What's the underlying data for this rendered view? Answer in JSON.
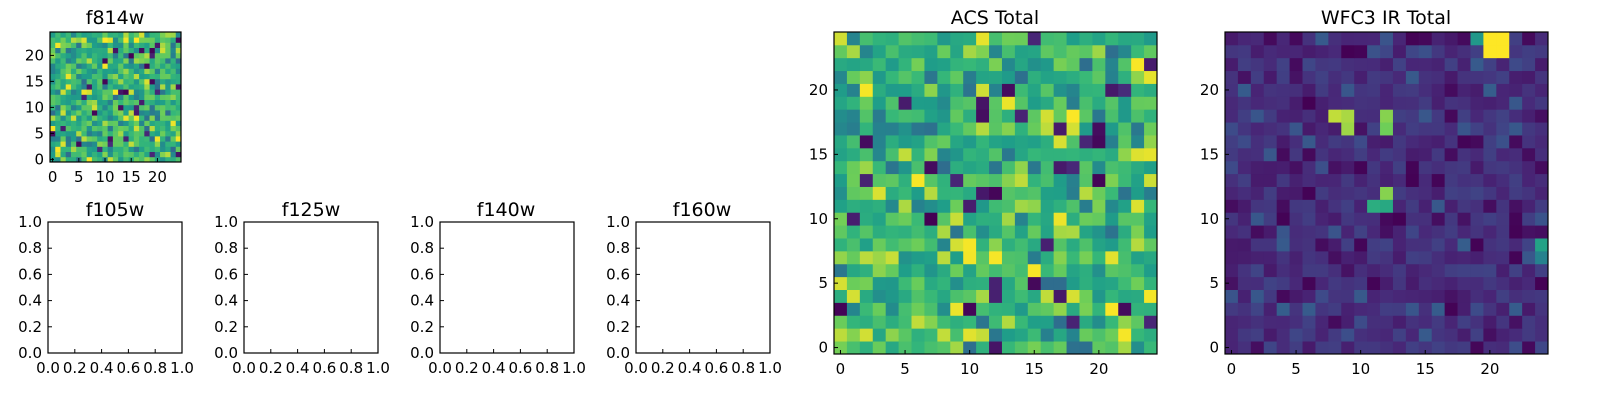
{
  "chart_data": [
    {
      "type": "heatmap",
      "title": "f814w",
      "xlim": [
        -0.5,
        24.5
      ],
      "ylim": [
        -0.5,
        24.5
      ],
      "xticks": [
        0,
        5,
        10,
        15,
        20
      ],
      "yticks": [
        0,
        5,
        10,
        15,
        20
      ],
      "grid": false,
      "colormap": "viridis",
      "values_note": "25x25 pixel image, mostly high (green-yellow) values with scattered dark pixels"
    },
    {
      "type": "line",
      "title": "f105w",
      "xlim": [
        0,
        1
      ],
      "ylim": [
        0,
        1
      ],
      "xticks": [
        "0.0",
        "0.2",
        "0.4",
        "0.6",
        "0.8",
        "1.0"
      ],
      "yticks": [
        "0.0",
        "0.2",
        "0.4",
        "0.6",
        "0.8",
        "1.0"
      ],
      "series": []
    },
    {
      "type": "line",
      "title": "f125w",
      "xlim": [
        0,
        1
      ],
      "ylim": [
        0,
        1
      ],
      "xticks": [
        "0.0",
        "0.2",
        "0.4",
        "0.6",
        "0.8",
        "1.0"
      ],
      "yticks": [
        "0.0",
        "0.2",
        "0.4",
        "0.6",
        "0.8",
        "1.0"
      ],
      "series": []
    },
    {
      "type": "line",
      "title": "f140w",
      "xlim": [
        0,
        1
      ],
      "ylim": [
        0,
        1
      ],
      "xticks": [
        "0.0",
        "0.2",
        "0.4",
        "0.6",
        "0.8",
        "1.0"
      ],
      "yticks": [
        "0.0",
        "0.2",
        "0.4",
        "0.6",
        "0.8",
        "1.0"
      ],
      "series": []
    },
    {
      "type": "line",
      "title": "f160w",
      "xlim": [
        0,
        1
      ],
      "ylim": [
        0,
        1
      ],
      "xticks": [
        "0.0",
        "0.2",
        "0.4",
        "0.6",
        "0.8",
        "1.0"
      ],
      "yticks": [
        "0.0",
        "0.2",
        "0.4",
        "0.6",
        "0.8",
        "1.0"
      ],
      "series": []
    },
    {
      "type": "heatmap",
      "title": "ACS Total",
      "xlim": [
        -0.5,
        24.5
      ],
      "ylim": [
        -0.5,
        24.5
      ],
      "xticks": [
        0,
        5,
        10,
        15,
        20
      ],
      "yticks": [
        0,
        5,
        10,
        15,
        20
      ],
      "grid": false,
      "colormap": "viridis",
      "values_note": "25x25 pixel image, mostly high (green-yellow) values with scattered dark pixels"
    },
    {
      "type": "heatmap",
      "title": "WFC3 IR Total",
      "xlim": [
        -0.5,
        24.5
      ],
      "ylim": [
        -0.5,
        24.5
      ],
      "xticks": [
        0,
        5,
        10,
        15,
        20
      ],
      "yticks": [
        0,
        5,
        10,
        15,
        20
      ],
      "grid": false,
      "colormap": "viridis",
      "values_note": "25x25 pixel image, mostly low (dark purple) values",
      "bright_pixels": [
        {
          "x": 8,
          "y": 18,
          "v": 0.95
        },
        {
          "x": 9,
          "y": 18,
          "v": 0.93
        },
        {
          "x": 9,
          "y": 17,
          "v": 0.92
        },
        {
          "x": 12,
          "y": 18,
          "v": 0.9
        },
        {
          "x": 12,
          "y": 17,
          "v": 0.88
        },
        {
          "x": 12,
          "y": 12,
          "v": 0.9
        },
        {
          "x": 11,
          "y": 11,
          "v": 0.7
        },
        {
          "x": 12,
          "y": 11,
          "v": 0.68
        },
        {
          "x": 20,
          "y": 23,
          "v": 1.0
        },
        {
          "x": 21,
          "y": 23,
          "v": 1.0
        },
        {
          "x": 20,
          "y": 24,
          "v": 1.0
        },
        {
          "x": 21,
          "y": 24,
          "v": 1.0
        },
        {
          "x": 19,
          "y": 24,
          "v": 0.6
        },
        {
          "x": 24,
          "y": 8,
          "v": 0.65
        },
        {
          "x": 24,
          "y": 7,
          "v": 0.5
        }
      ]
    }
  ]
}
